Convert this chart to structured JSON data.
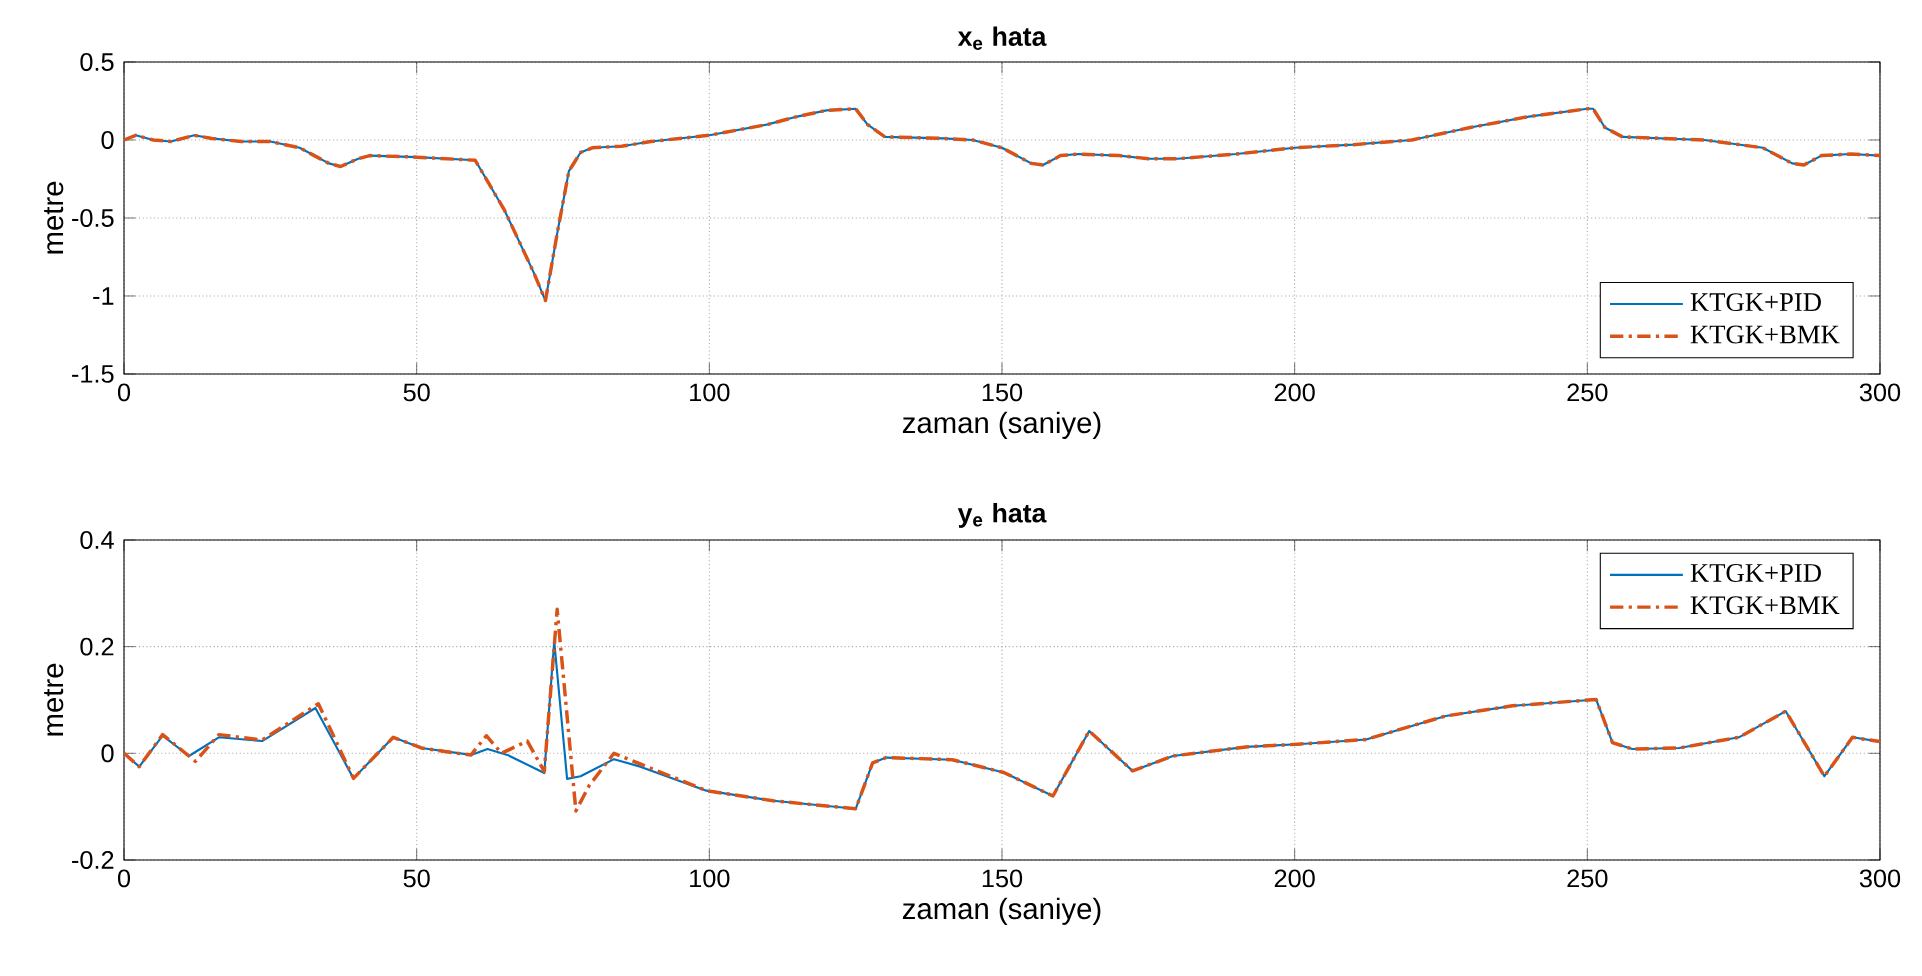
{
  "chart_data": [
    {
      "type": "line",
      "title": "x$_{e}$ hata",
      "xlabel": "zaman (saniye)",
      "ylabel": "metre",
      "x": [
        0,
        2,
        5,
        8,
        12,
        15,
        20,
        25,
        30,
        35,
        37,
        40,
        42,
        50,
        55,
        60,
        65,
        70,
        72,
        74,
        76,
        78,
        80,
        85,
        90,
        100,
        110,
        115,
        120,
        125,
        127,
        130,
        140,
        145,
        150,
        155,
        157,
        160,
        163,
        170,
        175,
        180,
        190,
        200,
        210,
        220,
        230,
        240,
        250,
        251,
        253,
        256,
        270,
        280,
        285,
        287,
        290,
        295,
        300
      ],
      "series": [
        {
          "name": "KTGK+PID",
          "color": "#0072bd",
          "line_style": "solid",
          "values": [
            0.0,
            0.03,
            0.0,
            -0.01,
            0.03,
            0.01,
            -0.01,
            -0.01,
            -0.05,
            -0.15,
            -0.17,
            -0.12,
            -0.1,
            -0.11,
            -0.12,
            -0.13,
            -0.45,
            -0.85,
            -1.03,
            -0.6,
            -0.2,
            -0.08,
            -0.05,
            -0.04,
            -0.01,
            0.03,
            0.1,
            0.15,
            0.19,
            0.2,
            0.1,
            0.02,
            0.01,
            0.0,
            -0.05,
            -0.15,
            -0.16,
            -0.1,
            -0.09,
            -0.1,
            -0.12,
            -0.12,
            -0.09,
            -0.05,
            -0.03,
            0.0,
            0.08,
            0.15,
            0.2,
            0.2,
            0.08,
            0.02,
            0.0,
            -0.05,
            -0.15,
            -0.16,
            -0.1,
            -0.09,
            -0.1
          ]
        },
        {
          "name": "KTGK+BMK",
          "color": "#d95319",
          "line_style": "dashdot",
          "values": [
            0.0,
            0.03,
            0.0,
            -0.01,
            0.03,
            0.01,
            -0.01,
            -0.01,
            -0.05,
            -0.15,
            -0.17,
            -0.12,
            -0.1,
            -0.11,
            -0.12,
            -0.13,
            -0.45,
            -0.85,
            -1.03,
            -0.6,
            -0.2,
            -0.08,
            -0.05,
            -0.04,
            -0.01,
            0.03,
            0.1,
            0.15,
            0.19,
            0.2,
            0.1,
            0.02,
            0.01,
            0.0,
            -0.05,
            -0.15,
            -0.16,
            -0.1,
            -0.09,
            -0.1,
            -0.12,
            -0.12,
            -0.09,
            -0.05,
            -0.03,
            0.0,
            0.08,
            0.15,
            0.2,
            0.2,
            0.08,
            0.02,
            0.0,
            -0.05,
            -0.15,
            -0.16,
            -0.1,
            -0.09,
            -0.1
          ]
        }
      ],
      "xlim": [
        0,
        300
      ],
      "ylim": [
        -1.5,
        0.5
      ],
      "xticks": [
        0,
        50,
        100,
        150,
        200,
        250,
        300
      ],
      "yticks": [
        -1.5,
        -1,
        -0.5,
        0,
        0.5
      ],
      "grid": true,
      "legend": "bottom right"
    },
    {
      "type": "line",
      "title": "y$_{e}$ hata",
      "xlabel": "zaman (saniye)",
      "ylabel": "metre",
      "series": [
        {
          "name": "KTGK+PID",
          "color": "#0072bd",
          "line_style": "solid",
          "x": [
            0,
            2.6,
            6.6,
            11.1,
            16.2,
            23.6,
            32.7,
            39.2,
            46,
            50.8,
            59.3,
            62.1,
            65.5,
            71.8,
            73.5,
            75.7,
            78,
            83.7,
            88.2,
            99.5,
            110.9,
            125,
            127.9,
            130.2,
            141.5,
            150.3,
            158.7,
            164.9,
            172.3,
            179.2,
            191.7,
            200.5,
            212.2,
            225.8,
            237.2,
            251.5,
            254.3,
            257.7,
            265.7,
            275.9,
            283.9,
            290.5,
            295.3,
            300
          ],
          "values": [
            0,
            -0.025,
            0.033,
            -0.005,
            0.03,
            0.023,
            0.085,
            -0.047,
            0.03,
            0.01,
            -0.003,
            0.008,
            -0.003,
            -0.037,
            0.21,
            -0.048,
            -0.043,
            -0.011,
            -0.025,
            -0.07,
            -0.089,
            -0.104,
            -0.018,
            -0.008,
            -0.012,
            -0.036,
            -0.08,
            0.042,
            -0.033,
            -0.005,
            0.012,
            0.017,
            0.026,
            0.07,
            0.089,
            0.101,
            0.02,
            0.008,
            0.01,
            0.03,
            0.079,
            -0.043,
            0.03,
            0.022
          ]
        },
        {
          "name": "KTGK+BMK",
          "color": "#d95319",
          "line_style": "dashdot",
          "x": [
            0,
            2.6,
            6.6,
            12.2,
            16.2,
            23.6,
            33.2,
            39.2,
            46,
            50.8,
            57,
            59.3,
            61.9,
            64.5,
            68.9,
            71.8,
            74,
            77.2,
            79.5,
            83.7,
            88.2,
            99.5,
            110.9,
            125,
            127.9,
            130.2,
            141.5,
            150.3,
            158.7,
            164.9,
            172.3,
            179.2,
            191.7,
            200.5,
            212.2,
            225.8,
            237.2,
            251.5,
            254.3,
            257.7,
            265.7,
            275.9,
            283.9,
            290.5,
            295.3,
            300
          ],
          "values": [
            0,
            -0.025,
            0.035,
            -0.015,
            0.035,
            0.025,
            0.093,
            -0.047,
            0.03,
            0.01,
            0.0,
            -0.003,
            0.033,
            0.0,
            0.023,
            -0.034,
            0.27,
            -0.108,
            -0.06,
            0.0,
            -0.02,
            -0.07,
            -0.089,
            -0.104,
            -0.018,
            -0.008,
            -0.012,
            -0.036,
            -0.08,
            0.042,
            -0.033,
            -0.005,
            0.012,
            0.017,
            0.026,
            0.07,
            0.089,
            0.101,
            0.02,
            0.008,
            0.01,
            0.03,
            0.079,
            -0.043,
            0.03,
            0.022
          ]
        }
      ],
      "xlim": [
        0,
        300
      ],
      "ylim": [
        -0.2,
        0.4
      ],
      "xticks": [
        0,
        50,
        100,
        150,
        200,
        250,
        300
      ],
      "yticks": [
        -0.2,
        0,
        0.2,
        0.4
      ],
      "grid": true,
      "legend": "top right"
    }
  ]
}
